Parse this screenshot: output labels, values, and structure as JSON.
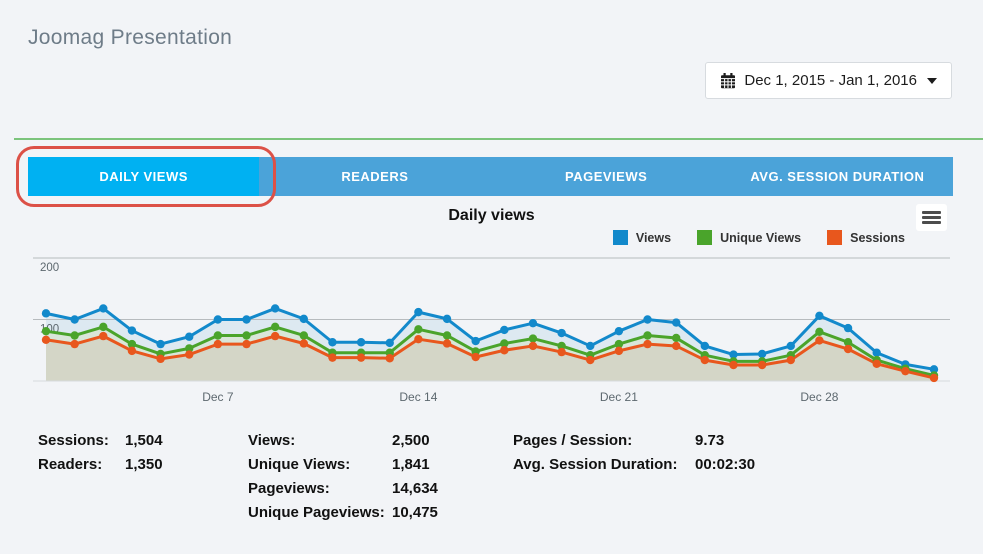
{
  "header": {
    "title": "Joomag Presentation"
  },
  "date_range": {
    "label": "Dec 1, 2015 - Jan 1, 2016"
  },
  "tabs": {
    "items": [
      {
        "label": "DAILY VIEWS",
        "active": true
      },
      {
        "label": "READERS",
        "active": false
      },
      {
        "label": "PAGEVIEWS",
        "active": false
      },
      {
        "label": "AVG. SESSION DURATION",
        "active": false
      }
    ]
  },
  "annotation": {
    "type": "highlight-oval",
    "target": "DAILY VIEWS tab",
    "color": "#dc5147"
  },
  "chart_data": {
    "type": "area",
    "title": "Daily views",
    "xlabel": "",
    "ylabel": "",
    "ylim": [
      0,
      220
    ],
    "grid": true,
    "legend_position": "top-right",
    "categories": [
      "Dec 1",
      "Dec 2",
      "Dec 3",
      "Dec 4",
      "Dec 5",
      "Dec 6",
      "Dec 7",
      "Dec 8",
      "Dec 9",
      "Dec 10",
      "Dec 11",
      "Dec 12",
      "Dec 13",
      "Dec 14",
      "Dec 15",
      "Dec 16",
      "Dec 17",
      "Dec 18",
      "Dec 19",
      "Dec 20",
      "Dec 21",
      "Dec 22",
      "Dec 23",
      "Dec 24",
      "Dec 25",
      "Dec 26",
      "Dec 27",
      "Dec 28",
      "Dec 29",
      "Dec 30",
      "Dec 31",
      "Jan 1"
    ],
    "x_tick_labels": [
      {
        "index": 6,
        "label": "Dec 7"
      },
      {
        "index": 13,
        "label": "Dec 14"
      },
      {
        "index": 20,
        "label": "Dec 21"
      },
      {
        "index": 27,
        "label": "Dec 28"
      }
    ],
    "y_ticks": [
      {
        "value": 200,
        "label": "200"
      },
      {
        "value": 100,
        "label": "100"
      }
    ],
    "series": [
      {
        "name": "Views",
        "color": "#1289cb",
        "values": [
          110,
          100,
          118,
          82,
          60,
          72,
          100,
          100,
          118,
          101,
          63,
          63,
          62,
          112,
          101,
          65,
          83,
          94,
          78,
          57,
          81,
          100,
          95,
          57,
          43,
          44,
          57,
          106,
          86,
          46,
          27,
          19
        ]
      },
      {
        "name": "Unique Views",
        "color": "#4aa42b",
        "values": [
          81,
          74,
          88,
          60,
          44,
          53,
          74,
          74,
          88,
          74,
          46,
          46,
          46,
          84,
          74,
          48,
          61,
          69,
          57,
          42,
          60,
          74,
          70,
          42,
          32,
          32,
          42,
          80,
          63,
          34,
          20,
          9
        ]
      },
      {
        "name": "Sessions",
        "color": "#e8571d",
        "values": [
          67,
          60,
          73,
          49,
          36,
          43,
          60,
          60,
          73,
          61,
          38,
          38,
          37,
          68,
          61,
          39,
          50,
          57,
          47,
          34,
          49,
          60,
          57,
          34,
          26,
          26,
          34,
          66,
          52,
          28,
          16,
          5
        ]
      }
    ],
    "area_fills": [
      "#dde9f1",
      "#d9e6d9",
      "#d4d6c7"
    ]
  },
  "stats": {
    "col1": {
      "rows": [
        {
          "label": "Sessions:",
          "value": "1,504"
        },
        {
          "label": "Readers:",
          "value": "1,350"
        }
      ]
    },
    "col2": {
      "rows": [
        {
          "label": "Views:",
          "value": "2,500"
        },
        {
          "label": "Unique Views:",
          "value": "1,841"
        },
        {
          "label": "Pageviews:",
          "value": "14,634"
        },
        {
          "label": "Unique Pageviews:",
          "value": "10,475"
        }
      ]
    },
    "col3": {
      "rows": [
        {
          "label": "Pages / Session:",
          "value": "9.73"
        },
        {
          "label": "Avg. Session Duration:",
          "value": "00:02:30"
        }
      ]
    }
  },
  "colors": {
    "page_background": "#f2f4f7",
    "tab_active": "#00b1f2",
    "tab_inactive": "#4ba3d9",
    "separator_green": "#7cc47c",
    "annotation_red": "#dc5147"
  }
}
